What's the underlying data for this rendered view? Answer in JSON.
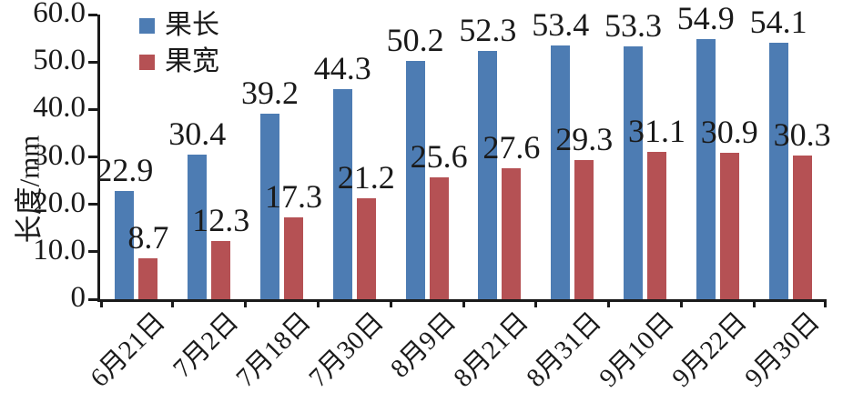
{
  "figure": {
    "background": "#ffffff",
    "axis_color": "#1a1a1a",
    "text_color": "#1a1a1a"
  },
  "chart_data": {
    "type": "bar",
    "title": "",
    "xlabel": "",
    "ylabel": "长度/mm",
    "ylim": [
      0,
      60
    ],
    "y_tick_step": 10,
    "y_tick_labels": [
      "0",
      "10.0",
      "20.0",
      "30.0",
      "40.0",
      "50.0",
      "60.0"
    ],
    "grid": false,
    "data_labels": true,
    "legend_position": "top-left-inside",
    "categories": [
      "6月21日",
      "7月2日",
      "7月18日",
      "7月30日",
      "8月9日",
      "8月21日",
      "8月31日",
      "9月10日",
      "9月22日",
      "9月30日"
    ],
    "series": [
      {
        "name": "果长",
        "color": "#4d7cb3",
        "values": [
          22.9,
          30.4,
          39.2,
          44.3,
          50.2,
          52.3,
          53.4,
          53.3,
          54.9,
          54.1
        ]
      },
      {
        "name": "果宽",
        "color": "#b55154",
        "values": [
          8.7,
          12.3,
          17.3,
          21.2,
          25.6,
          27.6,
          29.3,
          31.1,
          30.9,
          30.3
        ]
      }
    ]
  }
}
